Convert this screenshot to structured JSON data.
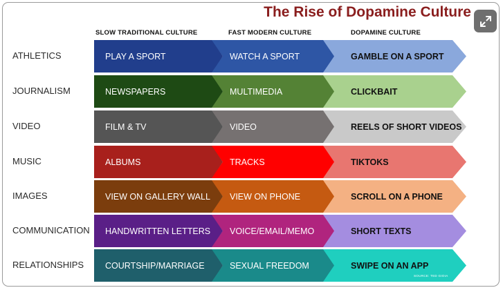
{
  "title": "The Rise of Dopamine Culture",
  "columns": [
    "SLOW TRADITIONAL CULTURE",
    "FAST MODERN CULTURE",
    "DOPAMINE CULTURE"
  ],
  "rows": [
    {
      "label": "ATHLETICS",
      "cells": [
        "PLAY A SPORT",
        "WATCH A SPORT",
        "GAMBLE ON A SPORT"
      ],
      "colors": [
        "#213e8c",
        "#2e56a5",
        "#8aa8dc"
      ]
    },
    {
      "label": "JOURNALISM",
      "cells": [
        "NEWSPAPERS",
        "MULTIMEDIA",
        "CLICKBAIT"
      ],
      "colors": [
        "#1e4a14",
        "#548235",
        "#a9d18e"
      ]
    },
    {
      "label": "VIDEO",
      "cells": [
        "FILM &  TV",
        "VIDEO",
        "REELS OF SHORT VIDEOS"
      ],
      "colors": [
        "#555555",
        "#767171",
        "#c9c9c9"
      ]
    },
    {
      "label": "MUSIC",
      "cells": [
        "ALBUMS",
        "TRACKS",
        "TIKTOKS"
      ],
      "colors": [
        "#a8201c",
        "#ff0000",
        "#e87670"
      ]
    },
    {
      "label": "IMAGES",
      "cells": [
        "VIEW ON GALLERY WALL",
        "VIEW ON PHONE",
        "SCROLL ON A PHONE"
      ],
      "colors": [
        "#7b3d0d",
        "#c55a11",
        "#f4b183"
      ]
    },
    {
      "label": "COMMUNICATION",
      "cells": [
        "HANDWRITTEN LETTERS",
        "VOICE/EMAIL/MEMO",
        "SHORT TEXTS"
      ],
      "colors": [
        "#5a1f87",
        "#b0247e",
        "#a48de0"
      ]
    },
    {
      "label": "RELATIONSHIPS",
      "cells": [
        "COURTSHIP/MARRIAGE",
        "SEXUAL FREEDOM",
        "SWIPE ON AN APP"
      ],
      "colors": [
        "#1f5f6b",
        "#1a8a8a",
        "#1fcfbf"
      ]
    }
  ],
  "source": "SOURCE: TED GIOIA",
  "expand_icon": "expand-arrows-icon"
}
